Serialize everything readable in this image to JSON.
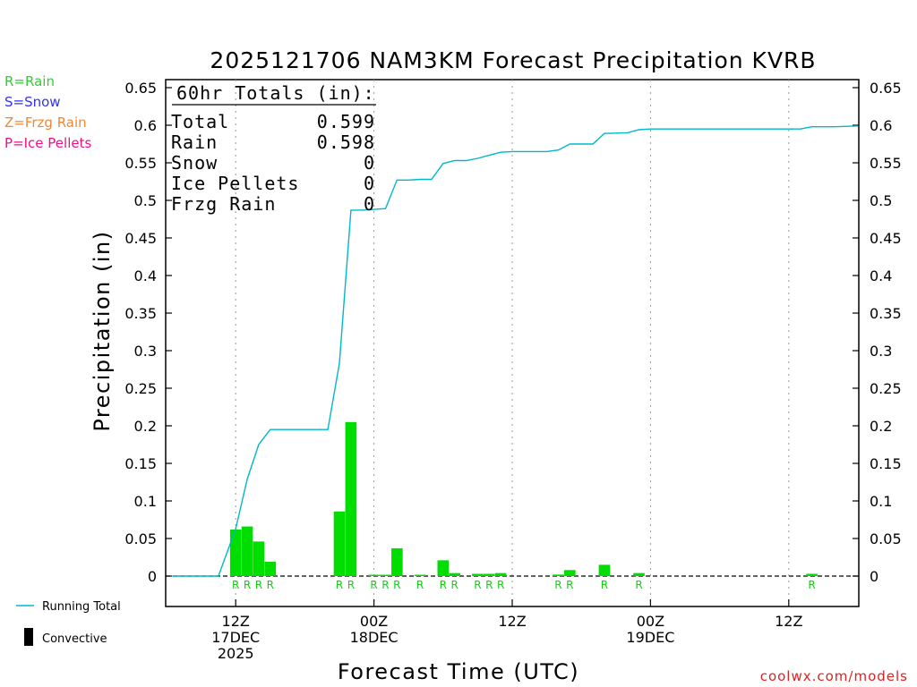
{
  "chart_data": {
    "type": "bar",
    "title": "2025121706 NAM3KM Forecast Precipitation KVRB",
    "xlabel": "Forecast Time (UTC)",
    "ylabel": "Precipitation (in)",
    "ylim": [
      -0.04,
      0.65
    ],
    "y_ticks": [
      "0",
      "0.05",
      "0.1",
      "0.15",
      "0.2",
      "0.25",
      "0.3",
      "0.35",
      "0.4",
      "0.45",
      "0.5",
      "0.55",
      "0.6",
      "0.65"
    ],
    "x_unit": "forecast hour",
    "xlim": [
      0,
      60
    ],
    "x_ticks": [
      {
        "hour": 6,
        "lines": [
          "12Z",
          "17DEC",
          "2025"
        ]
      },
      {
        "hour": 18,
        "lines": [
          "00Z",
          "18DEC"
        ]
      },
      {
        "hour": 30,
        "lines": [
          "12Z"
        ]
      },
      {
        "hour": 42,
        "lines": [
          "00Z",
          "19DEC"
        ]
      },
      {
        "hour": 54,
        "lines": [
          "12Z"
        ]
      }
    ],
    "totals_box": {
      "header": "60hr Totals (in):",
      "rows": [
        {
          "label": "Total",
          "value": "0.599"
        },
        {
          "label": "Rain",
          "value": "0.598"
        },
        {
          "label": "Snow",
          "value": "0"
        },
        {
          "label": "Ice Pellets",
          "value": "0"
        },
        {
          "label": "Frzg Rain",
          "value": "0"
        }
      ]
    },
    "type_legend": [
      {
        "text": "R=Rain",
        "color": "#33cc33"
      },
      {
        "text": "S=Snow",
        "color": "#3333ee"
      },
      {
        "text": "Z=Frzg Rain",
        "color": "#ee8833"
      },
      {
        "text": "P=Ice Pellets",
        "color": "#ee1188"
      }
    ],
    "series_legend": [
      {
        "text": "Running Total",
        "color": "#00b8c8"
      },
      {
        "text": "Convective",
        "color": "#000000"
      }
    ],
    "precip_series": {
      "name": "Hourly Precipitation",
      "color": "#00dd00",
      "bars": [
        {
          "hour": 6,
          "value": 0.062,
          "type": "R"
        },
        {
          "hour": 7,
          "value": 0.066,
          "type": "R"
        },
        {
          "hour": 8,
          "value": 0.046,
          "type": "R"
        },
        {
          "hour": 9,
          "value": 0.019,
          "type": "R"
        },
        {
          "hour": 15,
          "value": 0.086,
          "type": "R"
        },
        {
          "hour": 16,
          "value": 0.205,
          "type": "R"
        },
        {
          "hour": 18,
          "value": 0.001,
          "type": "R"
        },
        {
          "hour": 19,
          "value": 0.001,
          "type": "R"
        },
        {
          "hour": 20,
          "value": 0.037,
          "type": "R"
        },
        {
          "hour": 22,
          "value": 0.001,
          "type": "R"
        },
        {
          "hour": 24,
          "value": 0.021,
          "type": "R"
        },
        {
          "hour": 25,
          "value": 0.004,
          "type": "R"
        },
        {
          "hour": 27,
          "value": 0.003,
          "type": "R"
        },
        {
          "hour": 28,
          "value": 0.003,
          "type": "R"
        },
        {
          "hour": 29,
          "value": 0.004,
          "type": "R"
        },
        {
          "hour": 34,
          "value": 0.002,
          "type": "R"
        },
        {
          "hour": 35,
          "value": 0.008,
          "type": "R"
        },
        {
          "hour": 38,
          "value": 0.015,
          "type": "R"
        },
        {
          "hour": 41,
          "value": 0.004,
          "type": "R"
        },
        {
          "hour": 56,
          "value": 0.003,
          "type": "R"
        }
      ]
    },
    "running_total_series": {
      "name": "Running Total",
      "color": "#00b8c8",
      "points": [
        [
          0.5,
          0
        ],
        [
          4.5,
          0
        ],
        [
          6,
          0.063
        ],
        [
          7,
          0.129
        ],
        [
          8,
          0.175
        ],
        [
          9,
          0.195
        ],
        [
          14,
          0.195
        ],
        [
          15,
          0.283
        ],
        [
          16,
          0.487
        ],
        [
          17,
          0.487
        ],
        [
          18,
          0.488
        ],
        [
          19,
          0.489
        ],
        [
          20,
          0.527
        ],
        [
          21,
          0.527
        ],
        [
          22,
          0.528
        ],
        [
          23,
          0.528
        ],
        [
          24,
          0.549
        ],
        [
          25,
          0.553
        ],
        [
          26,
          0.553
        ],
        [
          27,
          0.556
        ],
        [
          28,
          0.56
        ],
        [
          29,
          0.564
        ],
        [
          30,
          0.565
        ],
        [
          33,
          0.565
        ],
        [
          34,
          0.567
        ],
        [
          35,
          0.575
        ],
        [
          37,
          0.575
        ],
        [
          38,
          0.589
        ],
        [
          40,
          0.59
        ],
        [
          41,
          0.594
        ],
        [
          42,
          0.595
        ],
        [
          55,
          0.595
        ],
        [
          56,
          0.598
        ],
        [
          58,
          0.598
        ],
        [
          60,
          0.599
        ]
      ]
    }
  },
  "credit": "coolwx.com/models"
}
